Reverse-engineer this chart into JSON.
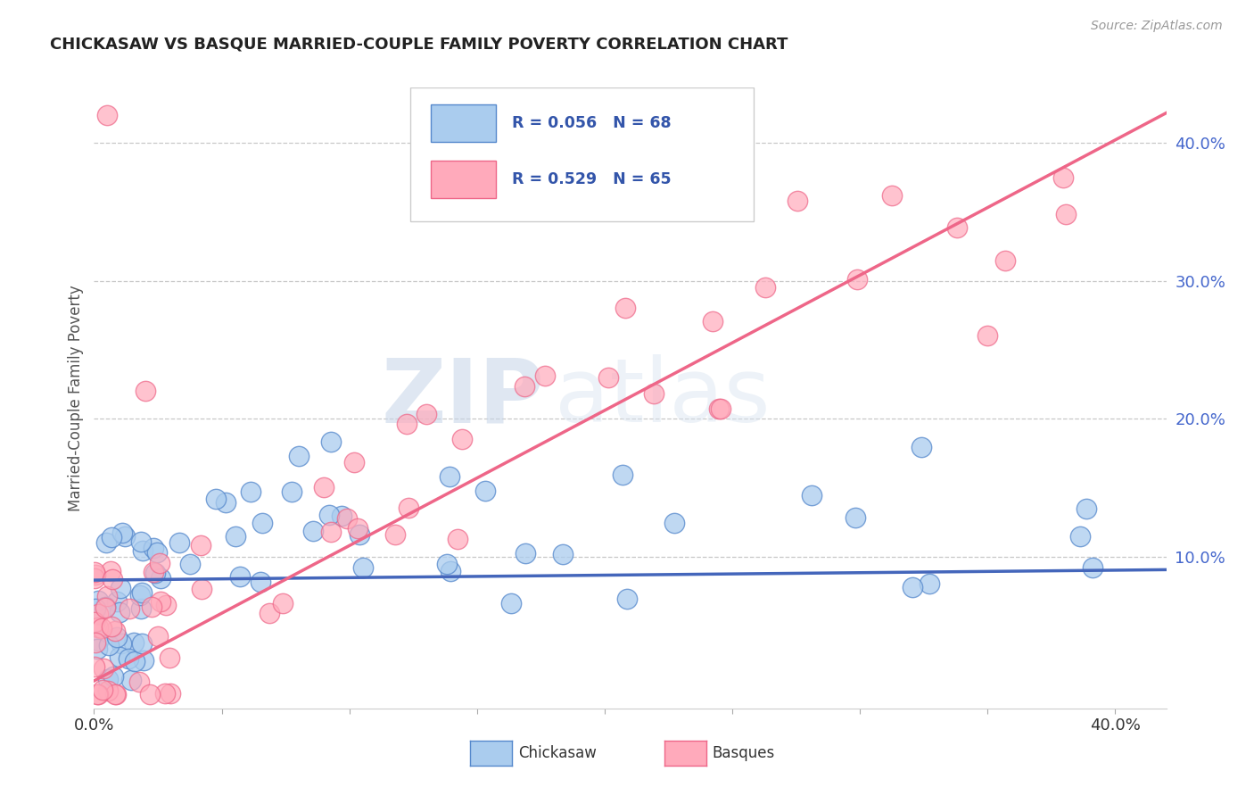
{
  "title": "CHICKASAW VS BASQUE MARRIED-COUPLE FAMILY POVERTY CORRELATION CHART",
  "source": "Source: ZipAtlas.com",
  "ylabel": "Married-Couple Family Poverty",
  "xlim": [
    0.0,
    0.42
  ],
  "ylim": [
    -0.01,
    0.44
  ],
  "yticks_right": [
    0.1,
    0.2,
    0.3,
    0.4
  ],
  "ytick_labels_right": [
    "10.0%",
    "20.0%",
    "30.0%",
    "40.0%"
  ],
  "chickasaw_color": "#aaccee",
  "chickasaw_edge": "#5588cc",
  "basque_color": "#ffaabb",
  "basque_edge": "#ee6688",
  "chickasaw_line_color": "#4466bb",
  "basque_line_color": "#ee6688",
  "chickasaw_R": 0.056,
  "chickasaw_N": 68,
  "basque_R": 0.529,
  "basque_N": 65,
  "background_color": "#ffffff",
  "grid_color": "#bbbbbb",
  "watermark_zip": "ZIP",
  "watermark_atlas": "atlas",
  "legend_R1": "R = 0.056",
  "legend_N1": "N = 68",
  "legend_R2": "R = 0.529",
  "legend_N2": "N = 65",
  "chickasaw_slope": 0.018,
  "chickasaw_intercept": 0.083,
  "basque_slope": 0.98,
  "basque_intercept": 0.01
}
